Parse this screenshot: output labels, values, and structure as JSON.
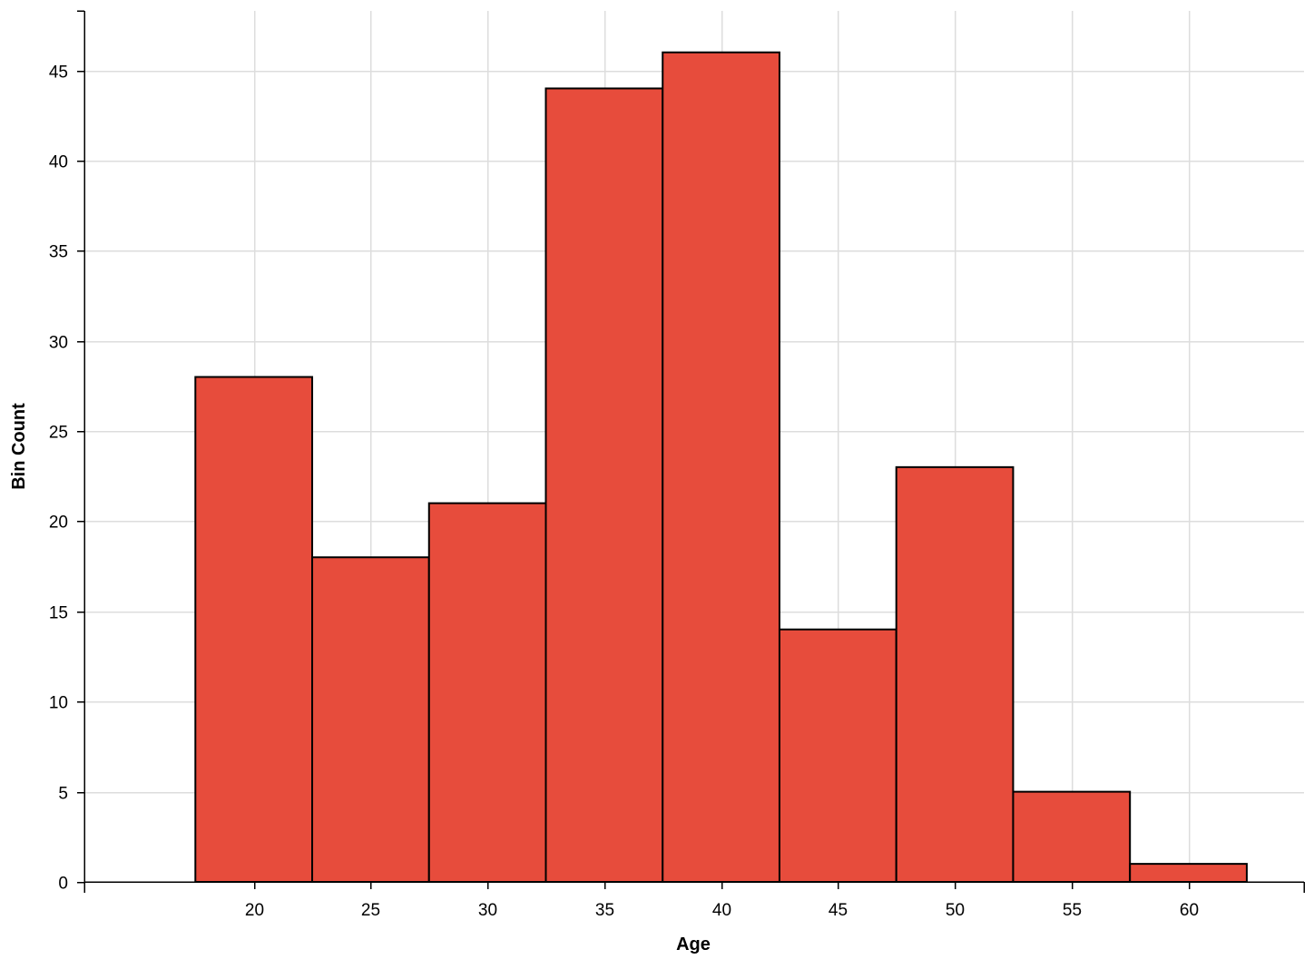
{
  "chart_data": {
    "type": "bar",
    "subtype": "histogram",
    "title": "",
    "xlabel": "Age",
    "ylabel": "Bin Count",
    "bin_width": 5,
    "bins": [
      {
        "x0": 17.5,
        "x1": 22.5,
        "count": 28
      },
      {
        "x0": 22.5,
        "x1": 27.5,
        "count": 18
      },
      {
        "x0": 27.5,
        "x1": 32.5,
        "count": 21
      },
      {
        "x0": 32.5,
        "x1": 37.5,
        "count": 44
      },
      {
        "x0": 37.5,
        "x1": 42.5,
        "count": 46
      },
      {
        "x0": 42.5,
        "x1": 47.5,
        "count": 14
      },
      {
        "x0": 47.5,
        "x1": 52.5,
        "count": 23
      },
      {
        "x0": 52.5,
        "x1": 57.5,
        "count": 5
      },
      {
        "x0": 57.5,
        "x1": 62.5,
        "count": 1
      }
    ],
    "xlim": [
      12.75,
      64.95
    ],
    "ylim": [
      0,
      48.3
    ],
    "x_ticks": [
      "20",
      "25",
      "30",
      "35",
      "40",
      "45",
      "50",
      "55",
      "60"
    ],
    "y_ticks": [
      "0",
      "5",
      "10",
      "15",
      "20",
      "25",
      "30",
      "35",
      "40",
      "45"
    ],
    "grid": true,
    "legend": "none",
    "colors": {
      "bar_fill": "#e74c3c",
      "bar_stroke": "#000000",
      "grid": "#dddddd",
      "axis": "#000000"
    }
  }
}
